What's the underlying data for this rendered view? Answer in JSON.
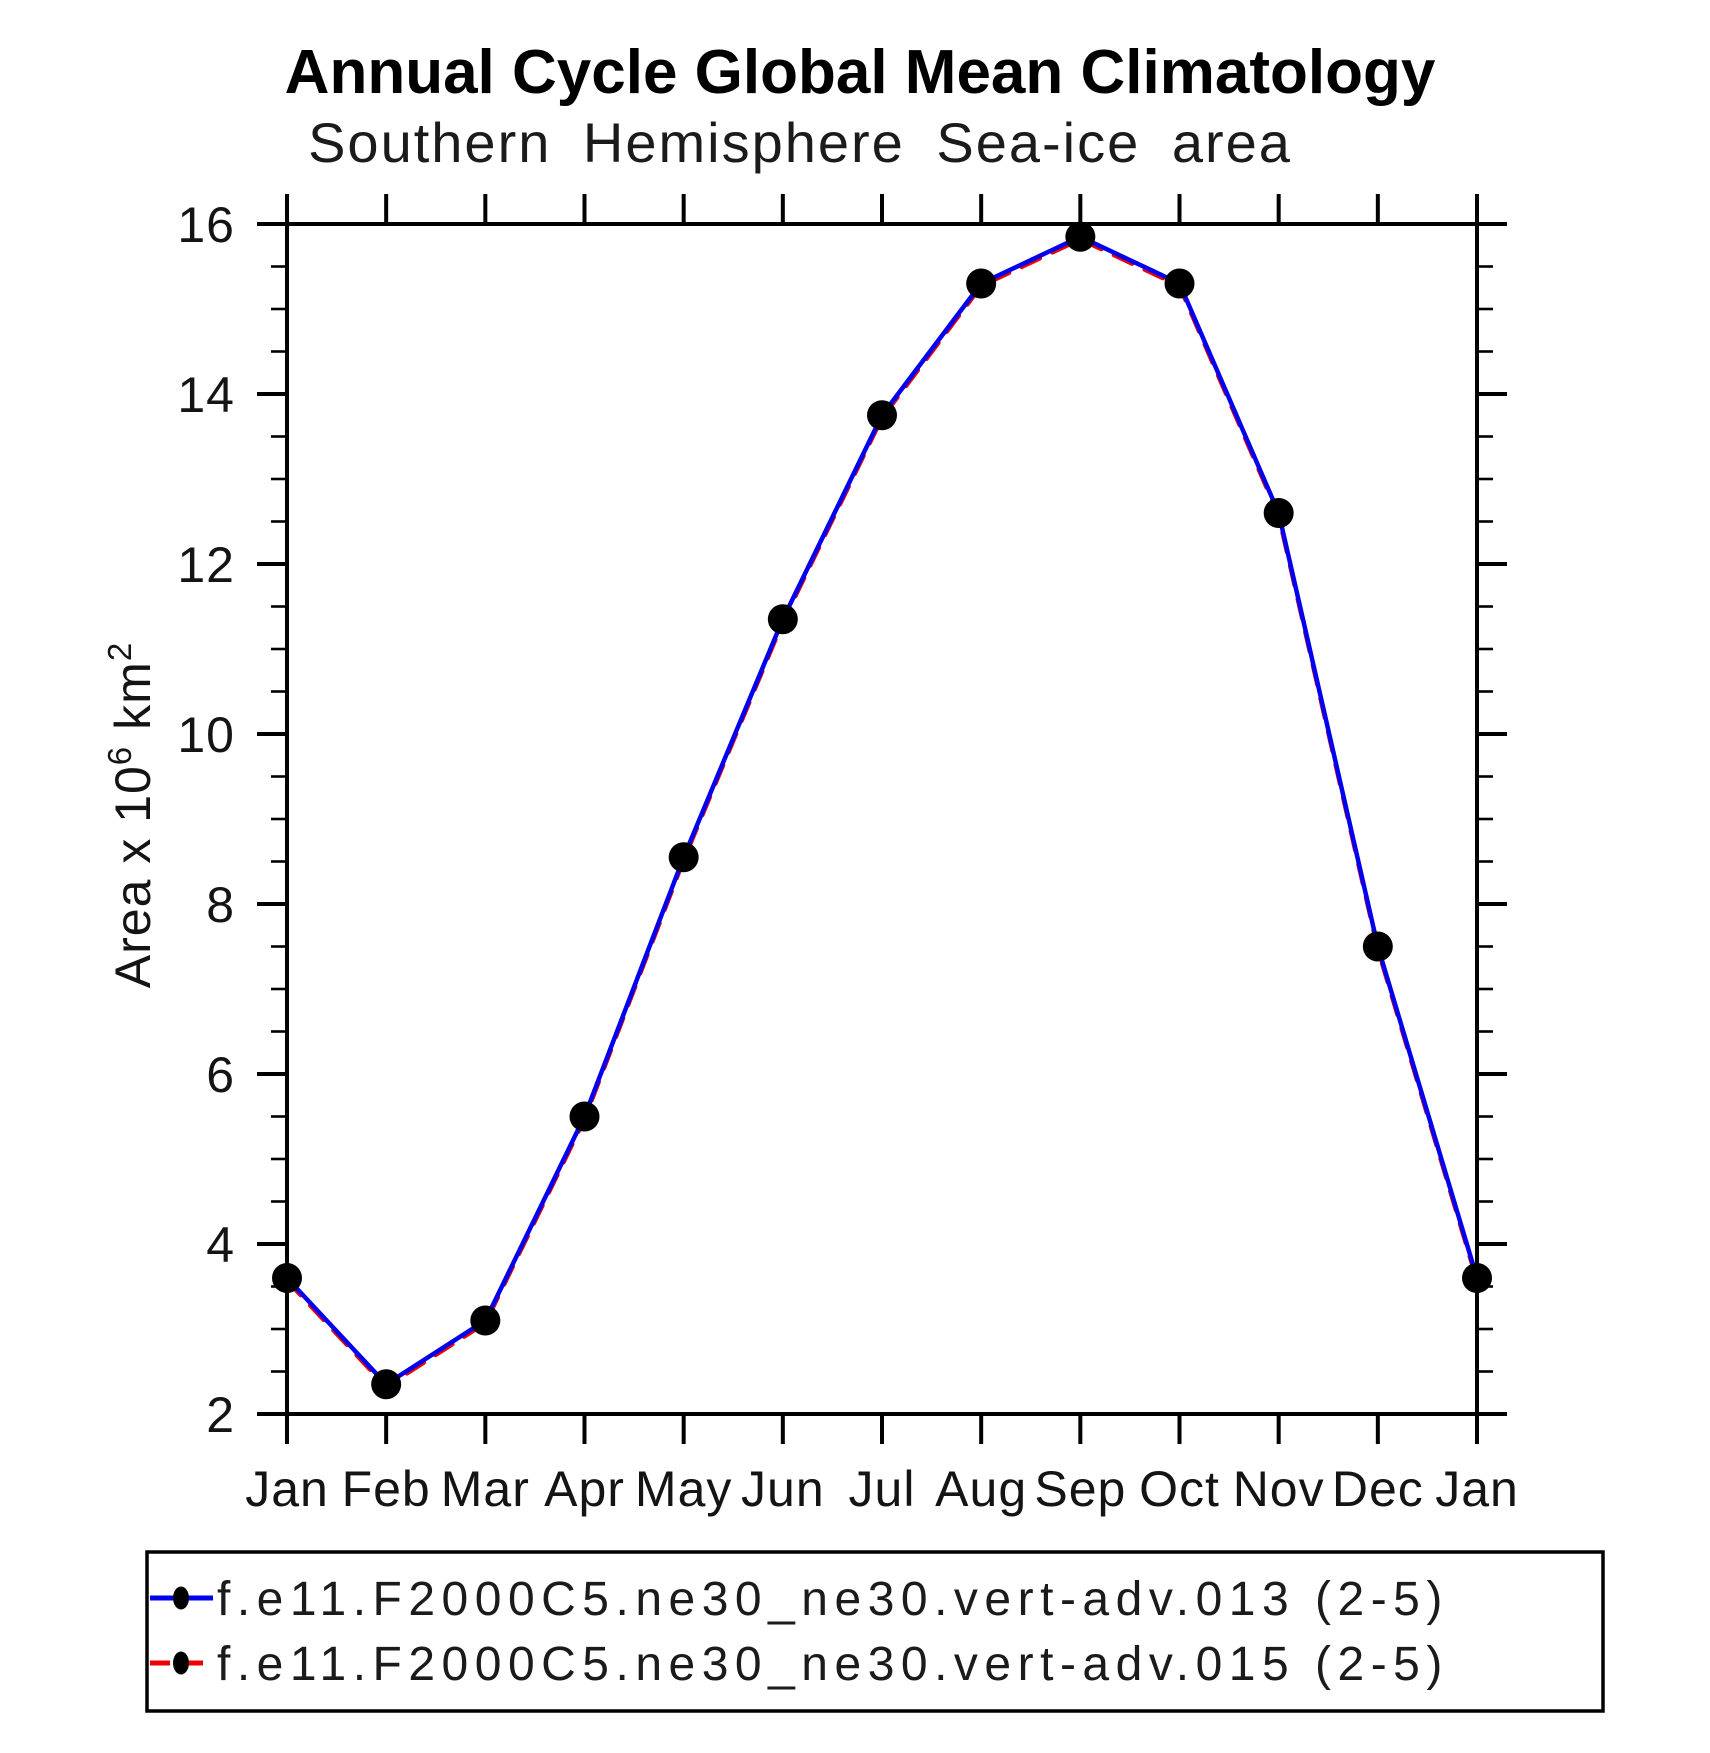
{
  "title": "Annual Cycle Global Mean Climatology",
  "subtitle": "Southern Hemisphere Sea-ice area",
  "y_axis_title": {
    "prefix": "Area x 10",
    "sup_exp": "6",
    "unit": "km",
    "sup_unit": "2"
  },
  "chart_data": {
    "type": "line",
    "categories": [
      "Jan",
      "Feb",
      "Mar",
      "Apr",
      "May",
      "Jun",
      "Jul",
      "Aug",
      "Sep",
      "Oct",
      "Nov",
      "Dec",
      "Jan"
    ],
    "xlabel": "",
    "ylabel": "Area x 10^6 km^2",
    "ylim": [
      2,
      16
    ],
    "ytick_step": 2,
    "yminor_step": 0.5,
    "ytick_labels": [
      "2",
      "4",
      "6",
      "8",
      "10",
      "12",
      "14",
      "16"
    ],
    "grid": false,
    "legend_position": "bottom",
    "series": [
      {
        "name": "f.e11.F2000C5.ne30_ne30.vert-adv.013 (2-5)",
        "color": "#0000ee",
        "line_style": "solid",
        "marker": "filled-circle",
        "marker_color": "#000000",
        "values": [
          3.6,
          2.35,
          3.1,
          5.5,
          8.55,
          11.35,
          13.75,
          15.3,
          15.85,
          15.3,
          12.6,
          7.5,
          3.6
        ]
      },
      {
        "name": "f.e11.F2000C5.ne30_ne30.vert-adv.015 (2-5)",
        "color": "#ee0000",
        "line_style": "dashed",
        "marker": "filled-circle",
        "marker_color": "#000000",
        "values": [
          3.6,
          2.35,
          3.1,
          5.5,
          8.55,
          11.35,
          13.75,
          15.3,
          15.85,
          15.3,
          12.6,
          7.5,
          3.6
        ]
      }
    ]
  }
}
